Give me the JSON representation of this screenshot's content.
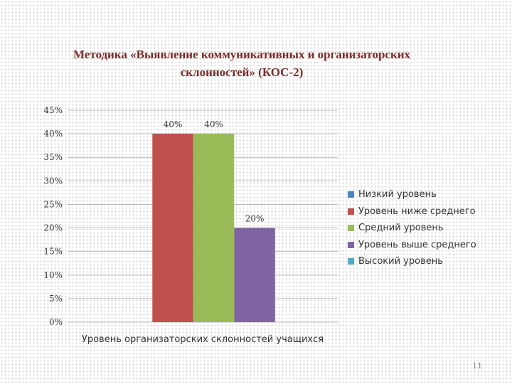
{
  "slide": {
    "title_line1": "Методика «Выявление коммуникативных и организаторских",
    "title_line2": "склонностей» (КОС-2)",
    "page_number": "11"
  },
  "chart_data": {
    "type": "bar",
    "categories": [
      "Уровень организаторских склонностей учащихся"
    ],
    "series": [
      {
        "name": "Низкий уровень",
        "values": [
          0
        ],
        "color": "#4f81bd"
      },
      {
        "name": "Уровень ниже среднего",
        "values": [
          40
        ],
        "color": "#c0504d"
      },
      {
        "name": "Средний уровень",
        "values": [
          40
        ],
        "color": "#9bbb59"
      },
      {
        "name": "Уровень выше среднего",
        "values": [
          20
        ],
        "color": "#8064a2"
      },
      {
        "name": "Высокий уровень",
        "values": [
          0
        ],
        "color": "#4bacc6"
      }
    ],
    "data_labels": [
      "",
      "40%",
      "40%",
      "20%",
      ""
    ],
    "ylim": [
      0,
      45
    ],
    "yticks": [
      0,
      5,
      10,
      15,
      20,
      25,
      30,
      35,
      40,
      45
    ],
    "ytick_labels": [
      "0%",
      "5%",
      "10%",
      "15%",
      "20%",
      "25%",
      "30%",
      "35%",
      "40%",
      "45%"
    ],
    "xlabel": "",
    "ylabel": "",
    "grid": true,
    "legend_position": "right"
  }
}
